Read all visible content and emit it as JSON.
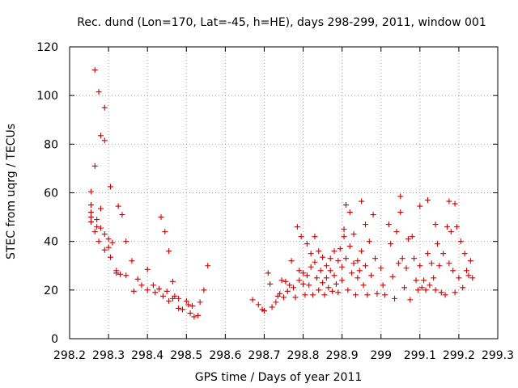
{
  "chart_data": {
    "type": "scatter",
    "title": "Rec. dund (Lon=170, Lat=-45, h=HE), days 298-299, 2011, window 001",
    "xlabel": "GPS time / Days of year 2011",
    "ylabel": "STEC from uqrg / TECUs",
    "xlim": [
      298.2,
      299.3
    ],
    "ylim": [
      0,
      120
    ],
    "xticks": [
      298.2,
      298.3,
      298.4,
      298.5,
      298.6,
      298.7,
      298.8,
      298.9,
      299.0,
      299.1,
      299.2,
      299.3
    ],
    "xtick_labels": [
      "298.2",
      "298.3",
      "298.4",
      "298.5",
      "298.6",
      "298.7",
      "298.8",
      "298.9",
      "299",
      "299.1",
      "299.2",
      "299.3"
    ],
    "yticks": [
      0,
      20,
      40,
      60,
      80,
      100,
      120
    ],
    "ytick_labels": [
      "0",
      "20",
      "40",
      "60",
      "80",
      "100",
      "120"
    ],
    "grid": true,
    "marker": "plus",
    "color": "#cc0000",
    "points": [
      [
        298.265,
        110.5
      ],
      [
        298.275,
        101.5
      ],
      [
        298.29,
        95
      ],
      [
        298.28,
        83.5
      ],
      [
        298.29,
        81.5
      ],
      [
        298.265,
        71
      ],
      [
        298.305,
        62.5
      ],
      [
        298.255,
        60.5
      ],
      [
        298.255,
        55
      ],
      [
        298.28,
        53.5
      ],
      [
        298.255,
        52
      ],
      [
        298.255,
        50
      ],
      [
        298.27,
        49
      ],
      [
        298.255,
        48
      ],
      [
        298.27,
        46
      ],
      [
        298.28,
        45.5
      ],
      [
        298.265,
        44
      ],
      [
        298.29,
        43
      ],
      [
        298.3,
        41
      ],
      [
        298.275,
        40
      ],
      [
        298.31,
        39.5
      ],
      [
        298.3,
        37.5
      ],
      [
        298.29,
        36.5
      ],
      [
        298.305,
        33.5
      ],
      [
        298.32,
        28
      ],
      [
        298.32,
        27
      ],
      [
        298.33,
        26.5
      ],
      [
        298.325,
        54.5
      ],
      [
        298.335,
        51
      ],
      [
        298.345,
        40
      ],
      [
        298.345,
        26
      ],
      [
        298.36,
        32
      ],
      [
        298.365,
        19.5
      ],
      [
        298.375,
        24.5
      ],
      [
        298.385,
        22
      ],
      [
        298.4,
        28.5
      ],
      [
        298.4,
        20
      ],
      [
        298.415,
        22
      ],
      [
        298.42,
        19
      ],
      [
        298.43,
        20.5
      ],
      [
        298.435,
        50
      ],
      [
        298.445,
        44
      ],
      [
        298.44,
        17.5
      ],
      [
        298.45,
        19.5
      ],
      [
        298.455,
        36
      ],
      [
        298.455,
        15.5
      ],
      [
        298.465,
        23.5
      ],
      [
        298.465,
        16.5
      ],
      [
        298.47,
        17.5
      ],
      [
        298.48,
        16.5
      ],
      [
        298.48,
        12.5
      ],
      [
        298.49,
        12
      ],
      [
        298.5,
        15.5
      ],
      [
        298.505,
        14
      ],
      [
        298.51,
        10.5
      ],
      [
        298.515,
        13.5
      ],
      [
        298.52,
        9
      ],
      [
        298.53,
        9.5
      ],
      [
        298.535,
        15
      ],
      [
        298.545,
        20
      ],
      [
        298.555,
        30
      ],
      [
        298.67,
        16
      ],
      [
        298.685,
        14
      ],
      [
        298.695,
        12
      ],
      [
        298.7,
        11.5
      ],
      [
        298.71,
        27
      ],
      [
        298.715,
        22.5
      ],
      [
        298.72,
        13
      ],
      [
        298.73,
        15
      ],
      [
        298.735,
        17.5
      ],
      [
        298.74,
        18.5
      ],
      [
        298.745,
        24
      ],
      [
        298.75,
        17
      ],
      [
        298.755,
        23.5
      ],
      [
        298.76,
        19.5
      ],
      [
        298.765,
        22
      ],
      [
        298.77,
        32
      ],
      [
        298.775,
        21
      ],
      [
        298.78,
        17
      ],
      [
        298.785,
        46
      ],
      [
        298.79,
        28
      ],
      [
        298.79,
        24
      ],
      [
        298.795,
        42
      ],
      [
        298.8,
        27
      ],
      [
        298.8,
        22.5
      ],
      [
        298.805,
        18
      ],
      [
        298.81,
        39
      ],
      [
        298.81,
        26
      ],
      [
        298.815,
        22
      ],
      [
        298.82,
        35
      ],
      [
        298.82,
        29.5
      ],
      [
        298.825,
        18
      ],
      [
        298.83,
        42
      ],
      [
        298.83,
        31.5
      ],
      [
        298.835,
        25
      ],
      [
        298.84,
        36
      ],
      [
        298.84,
        20
      ],
      [
        298.845,
        28
      ],
      [
        298.85,
        33.5
      ],
      [
        298.85,
        23
      ],
      [
        298.855,
        18
      ],
      [
        298.86,
        30
      ],
      [
        298.86,
        25
      ],
      [
        298.865,
        21
      ],
      [
        298.87,
        33
      ],
      [
        298.87,
        28
      ],
      [
        298.875,
        19.5
      ],
      [
        298.88,
        36
      ],
      [
        298.88,
        26
      ],
      [
        298.885,
        22.5
      ],
      [
        298.89,
        32
      ],
      [
        298.89,
        19
      ],
      [
        298.895,
        37
      ],
      [
        298.9,
        29.5
      ],
      [
        298.9,
        24
      ],
      [
        298.905,
        45
      ],
      [
        298.905,
        42
      ],
      [
        298.91,
        55
      ],
      [
        298.91,
        33
      ],
      [
        298.915,
        20
      ],
      [
        298.92,
        52
      ],
      [
        298.92,
        38
      ],
      [
        298.925,
        27
      ],
      [
        298.93,
        43
      ],
      [
        298.93,
        31
      ],
      [
        298.935,
        18
      ],
      [
        298.94,
        32
      ],
      [
        298.94,
        25
      ],
      [
        298.945,
        28
      ],
      [
        298.95,
        56.5
      ],
      [
        298.95,
        36
      ],
      [
        298.955,
        22
      ],
      [
        298.96,
        47
      ],
      [
        298.96,
        30
      ],
      [
        298.965,
        18
      ],
      [
        298.97,
        40
      ],
      [
        298.975,
        26
      ],
      [
        298.98,
        51
      ],
      [
        298.985,
        33
      ],
      [
        298.99,
        18.5
      ],
      [
        299.0,
        29
      ],
      [
        299.005,
        22
      ],
      [
        299.01,
        18
      ],
      [
        299.02,
        47
      ],
      [
        299.025,
        39
      ],
      [
        299.03,
        25.5
      ],
      [
        299.035,
        16.5
      ],
      [
        299.04,
        44
      ],
      [
        299.045,
        31
      ],
      [
        299.05,
        58.5
      ],
      [
        299.05,
        52
      ],
      [
        299.055,
        33
      ],
      [
        299.06,
        21
      ],
      [
        299.065,
        29
      ],
      [
        299.07,
        41
      ],
      [
        299.075,
        16
      ],
      [
        299.08,
        42
      ],
      [
        299.085,
        33
      ],
      [
        299.09,
        24
      ],
      [
        299.095,
        20
      ],
      [
        299.1,
        54.5
      ],
      [
        299.1,
        30
      ],
      [
        299.105,
        21
      ],
      [
        299.11,
        24
      ],
      [
        299.115,
        20
      ],
      [
        299.12,
        57
      ],
      [
        299.12,
        35
      ],
      [
        299.125,
        22
      ],
      [
        299.13,
        31
      ],
      [
        299.135,
        25
      ],
      [
        299.14,
        47
      ],
      [
        299.14,
        20
      ],
      [
        299.145,
        39
      ],
      [
        299.15,
        30
      ],
      [
        299.155,
        19
      ],
      [
        299.16,
        35
      ],
      [
        299.165,
        18
      ],
      [
        299.17,
        46
      ],
      [
        299.175,
        56.5
      ],
      [
        299.175,
        31
      ],
      [
        299.18,
        44
      ],
      [
        299.185,
        28
      ],
      [
        299.19,
        55.5
      ],
      [
        299.19,
        19
      ],
      [
        299.195,
        46
      ],
      [
        299.2,
        25
      ],
      [
        299.205,
        40
      ],
      [
        299.21,
        21
      ],
      [
        299.215,
        35
      ],
      [
        299.22,
        28
      ],
      [
        299.225,
        26
      ],
      [
        299.23,
        32
      ],
      [
        299.235,
        25
      ]
    ]
  }
}
